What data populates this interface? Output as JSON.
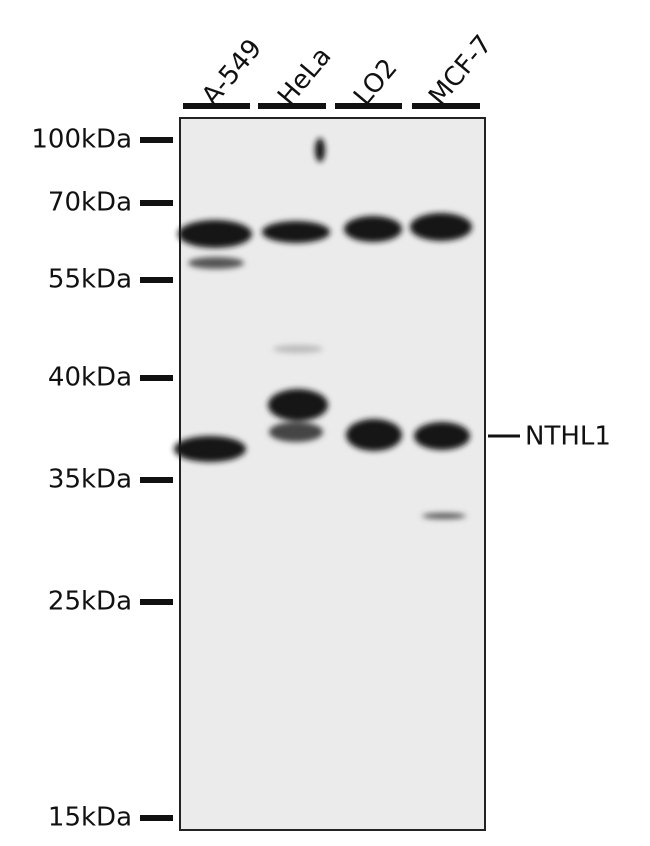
{
  "lanes": [
    "A-549",
    "HeLa",
    "LO2",
    "MCF-7"
  ],
  "markers": [
    "100kDa",
    "70kDa",
    "55kDa",
    "40kDa",
    "35kDa",
    "25kDa",
    "15kDa"
  ],
  "target": "NTHL1"
}
